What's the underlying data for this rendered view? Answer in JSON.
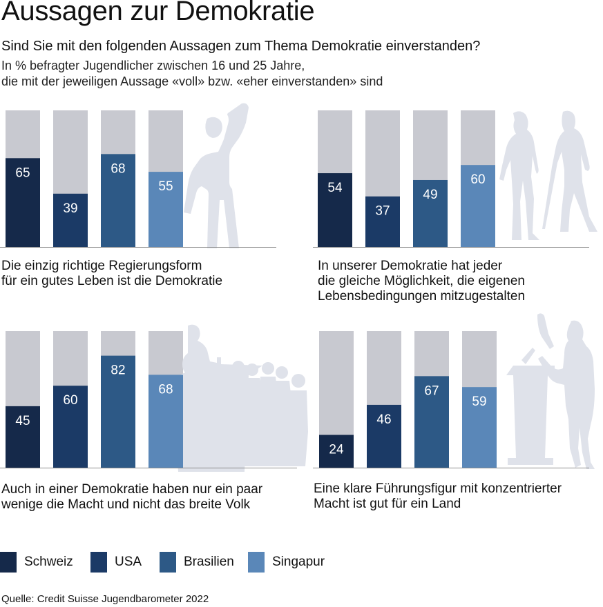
{
  "header": {
    "title": "Aussagen zur Demokratie",
    "subtitle": "Sind Sie mit den folgenden Aussagen zum Thema Demokratie einverstanden?",
    "note_lines": [
      "In % befragter Jugendlicher zwischen 16 und 25 Jahre,",
      "die mit der jeweiligen Aussage «voll» bzw. «eher einverstanden» sind"
    ]
  },
  "chart_data": [
    {
      "type": "bar",
      "unit": "%",
      "title_lines": [
        "Die einzig richtige Regierungsform",
        "für ein gutes Leben ist die Demokratie"
      ],
      "categories": [
        "Schweiz",
        "USA",
        "Brasilien",
        "Singapur"
      ],
      "values": [
        65,
        39,
        68,
        55
      ],
      "ylim": [
        0,
        100
      ]
    },
    {
      "type": "bar",
      "unit": "%",
      "title_lines": [
        "In unserer Demokratie hat jeder",
        "die gleiche Möglichkeit, die eigenen",
        "Lebensbedingungen mitzugestalten"
      ],
      "categories": [
        "Schweiz",
        "USA",
        "Brasilien",
        "Singapur"
      ],
      "values": [
        54,
        37,
        49,
        60
      ],
      "ylim": [
        0,
        100
      ]
    },
    {
      "type": "bar",
      "unit": "%",
      "title_lines": [
        "Auch in einer Demokratie haben nur ein paar",
        "wenige die Macht und nicht das breite Volk"
      ],
      "categories": [
        "Schweiz",
        "USA",
        "Brasilien",
        "Singapur"
      ],
      "values": [
        45,
        60,
        82,
        68
      ],
      "ylim": [
        0,
        100
      ]
    },
    {
      "type": "bar",
      "unit": "%",
      "title_lines": [
        "Eine klare Führungsfigur mit konzentrierter",
        "Macht ist gut für ein Land"
      ],
      "categories": [
        "Schweiz",
        "USA",
        "Brasilien",
        "Singapur"
      ],
      "values": [
        24,
        46,
        67,
        59
      ],
      "ylim": [
        0,
        100
      ]
    }
  ],
  "legend": [
    {
      "label": "Schweiz",
      "color": "#15294a"
    },
    {
      "label": "USA",
      "color": "#1b3a66"
    },
    {
      "label": "Brasilien",
      "color": "#2d5986"
    },
    {
      "label": "Singapur",
      "color": "#5a87b8"
    }
  ],
  "colors": {
    "bar_background": "#c8c9d0",
    "baseline": "#8a8a8a",
    "silhouette": "#dfe2ea"
  },
  "icons": [
    "protester-raised-fist-icon",
    "two-women-silhouette-icon",
    "speaker-and-crowd-icon",
    "woman-at-lectern-icon"
  ],
  "source": {
    "label": "Quelle:",
    "text": "Credit Suisse Jugendbarometer 2022"
  }
}
